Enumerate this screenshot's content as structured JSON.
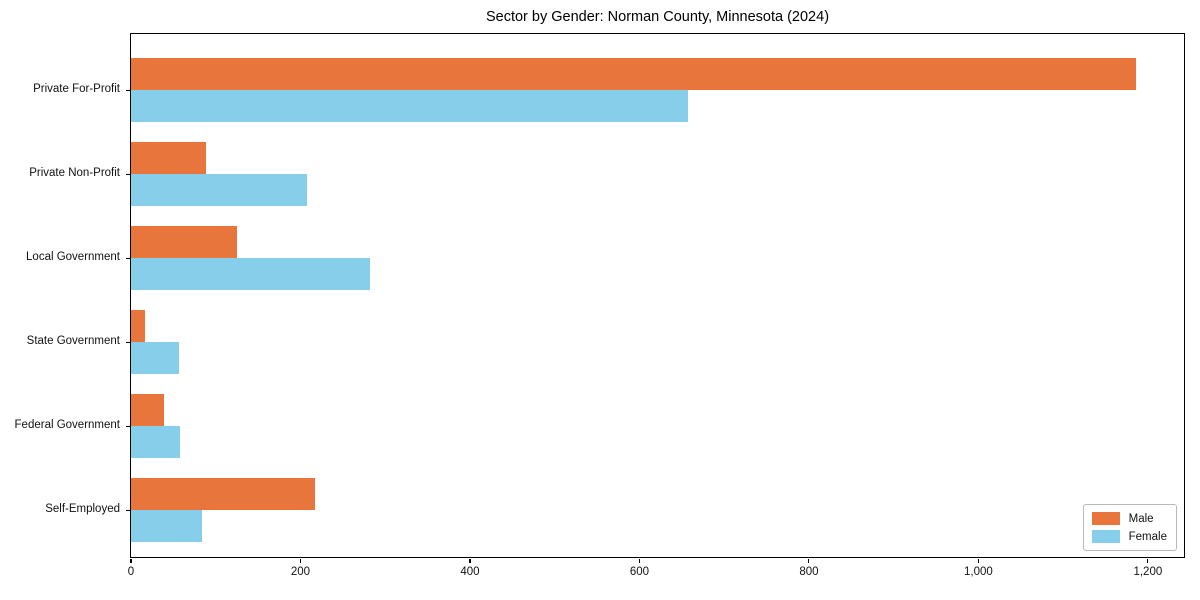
{
  "chart_data": {
    "type": "bar",
    "orientation": "horizontal",
    "title": "Sector by Gender: Norman County, Minnesota (2024)",
    "categories": [
      "Private For-Profit",
      "Private Non-Profit",
      "Local Government",
      "State Government",
      "Federal Government",
      "Self-Employed"
    ],
    "series": [
      {
        "name": "Male",
        "color": "#e8763c",
        "values": [
          1186,
          88,
          125,
          16,
          39,
          217
        ]
      },
      {
        "name": "Female",
        "color": "#87ceeb",
        "values": [
          657,
          208,
          282,
          57,
          58,
          84
        ]
      }
    ],
    "xlabel": "",
    "ylabel": "",
    "xlim": [
      0,
      1245
    ],
    "xticks": [
      0,
      200,
      400,
      600,
      800,
      1000,
      1200
    ],
    "xtick_labels": [
      "0",
      "200",
      "400",
      "600",
      "800",
      "1,000",
      "1,200"
    ],
    "grid": false,
    "legend_position": "lower right",
    "background_color": "#ffffff",
    "spine_color": "#000000"
  }
}
